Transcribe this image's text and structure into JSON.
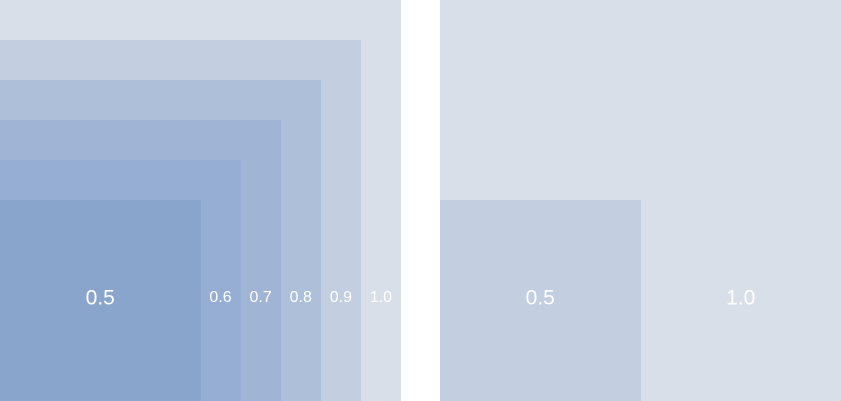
{
  "left_panel": {
    "squares": [
      {
        "label": "1.0",
        "scale": 1.0,
        "color": "#d9dfe9"
      },
      {
        "label": "0.9",
        "scale": 0.9,
        "color": "#c3cee0"
      },
      {
        "label": "0.8",
        "scale": 0.8,
        "color": "#aebfda"
      },
      {
        "label": "0.7",
        "scale": 0.7,
        "color": "#a0b4d6"
      },
      {
        "label": "0.6",
        "scale": 0.6,
        "color": "#96aed4"
      },
      {
        "label": "0.5",
        "scale": 0.5,
        "color": "#8aa5cc"
      }
    ]
  },
  "right_panel": {
    "squares": [
      {
        "label": "1.0",
        "scale": 1.0,
        "color": "#d9dfe9"
      },
      {
        "label": "0.5",
        "scale": 0.5,
        "color": "#c3cee0"
      }
    ]
  }
}
